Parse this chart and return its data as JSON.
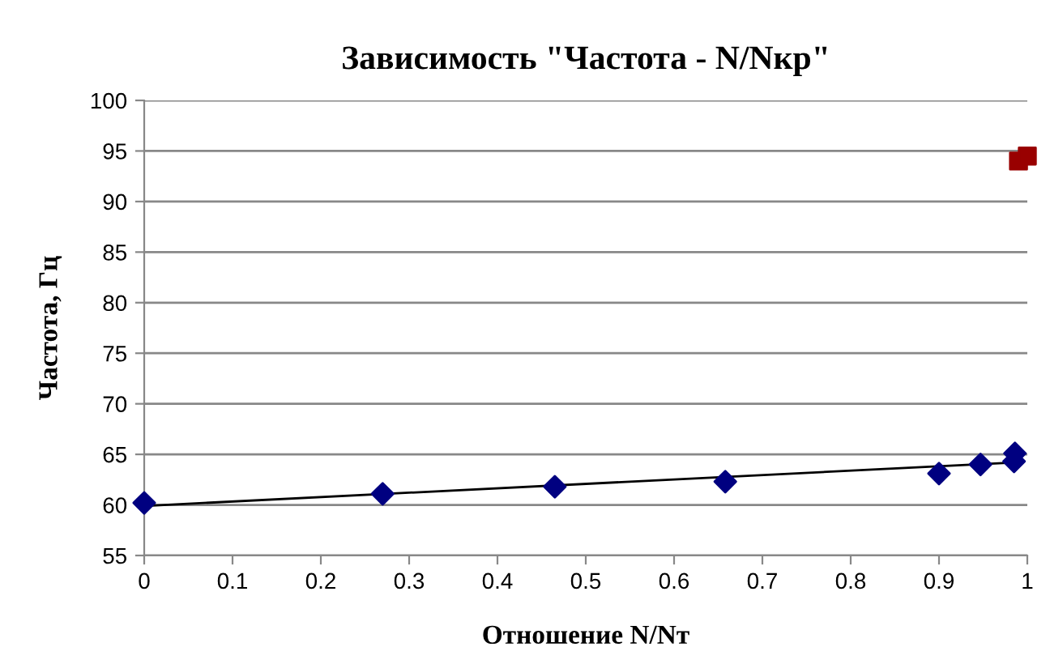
{
  "chart_data": {
    "type": "scatter",
    "title": "Зависимость \"Частота - N/Nкр\"",
    "xlabel": "Отношение N/Nт",
    "ylabel": "Частота, Гц",
    "series": [
      {
        "color": "#000080",
        "marker": "diamond",
        "x": [
          0,
          0.27,
          0.465,
          0.658,
          0.9,
          0.947,
          0.985,
          0.986
        ],
        "values": [
          60.2,
          61.1,
          61.8,
          62.3,
          63.1,
          64.0,
          64.3,
          65.1
        ]
      },
      {
        "color": "#990000",
        "marker": "square",
        "x": [
          0.99,
          1.0
        ],
        "values": [
          94.0,
          94.5
        ]
      },
      {
        "type": "line",
        "color": "#000000",
        "marker": "none",
        "x": [
          0,
          0.985
        ],
        "values": [
          59.9,
          64.2
        ]
      }
    ],
    "xlim": [
      0,
      1
    ],
    "xticks": [
      0,
      0.1,
      0.2,
      0.3,
      0.4,
      0.5,
      0.6,
      0.7,
      0.8,
      0.9,
      1
    ],
    "ylim": [
      55,
      100
    ],
    "yticks": [
      55,
      60,
      65,
      70,
      75,
      80,
      85,
      90,
      95,
      100
    ],
    "grid": "y",
    "legend": false
  }
}
